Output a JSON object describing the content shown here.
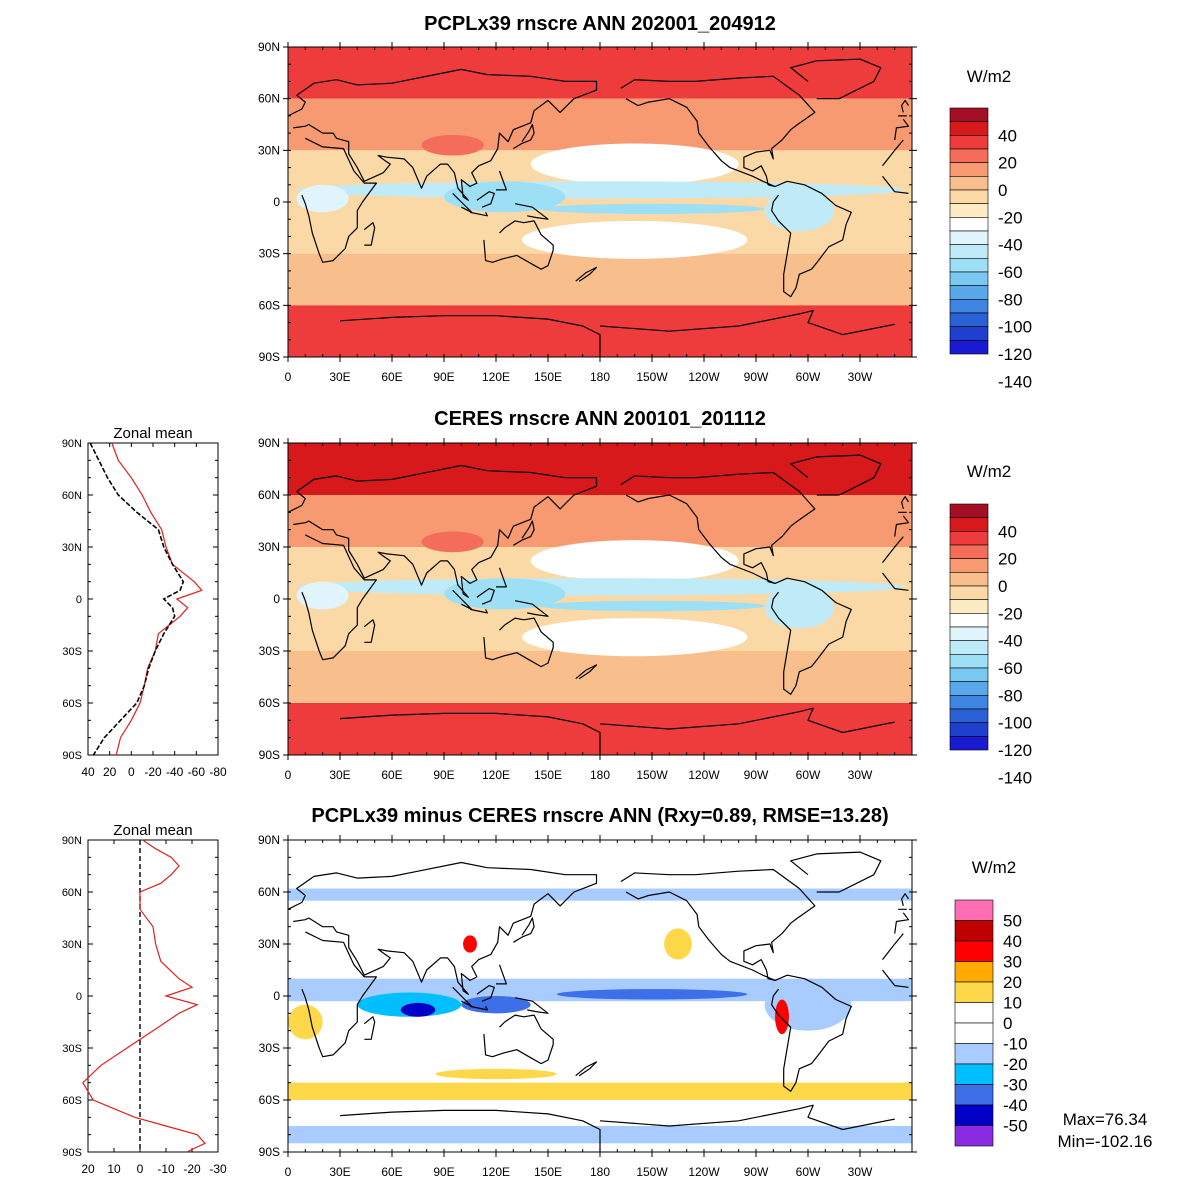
{
  "chart_data": [
    {
      "type": "heatmap",
      "panel": "model",
      "title": "PCPLx39 rnscre ANN 202001_204912",
      "units": "W/m2",
      "lat_ticks": [
        "90N",
        "60N",
        "30N",
        "0",
        "30S",
        "60S",
        "90S"
      ],
      "lon_ticks": [
        "0",
        "30E",
        "60E",
        "90E",
        "120E",
        "150E",
        "180",
        "150W",
        "120W",
        "90W",
        "60W",
        "30W"
      ],
      "colorbar_labels": [
        "40",
        "20",
        "0",
        "-20",
        "-40",
        "-60",
        "-80",
        "-100",
        "-120",
        "-140"
      ],
      "colorbar_colors": [
        "#a50f25",
        "#d7191c",
        "#ee3b3b",
        "#f46d5a",
        "#f79a72",
        "#f8bf8c",
        "#fbd9a6",
        "#fdebc3",
        "#ffffff",
        "#dff4fb",
        "#bfebf9",
        "#9ddff5",
        "#79c8f2",
        "#58a8ea",
        "#3d85e0",
        "#2a62d6",
        "#1f3fcf",
        "#1a1ad0"
      ],
      "zonal_mean": null
    },
    {
      "type": "heatmap",
      "panel": "obs",
      "title": "CERES rnscre ANN 200101_201112",
      "units": "W/m2",
      "lat_ticks": [
        "90N",
        "60N",
        "30N",
        "0",
        "30S",
        "60S",
        "90S"
      ],
      "lon_ticks": [
        "0",
        "30E",
        "60E",
        "90E",
        "120E",
        "150E",
        "180",
        "150W",
        "120W",
        "90W",
        "60W",
        "30W"
      ],
      "colorbar_labels": [
        "40",
        "20",
        "0",
        "-20",
        "-40",
        "-60",
        "-80",
        "-100",
        "-120",
        "-140"
      ],
      "colorbar_colors": [
        "#a50f25",
        "#d7191c",
        "#ee3b3b",
        "#f46d5a",
        "#f79a72",
        "#f8bf8c",
        "#fbd9a6",
        "#fdebc3",
        "#ffffff",
        "#dff4fb",
        "#bfebf9",
        "#9ddff5",
        "#79c8f2",
        "#58a8ea",
        "#3d85e0",
        "#2a62d6",
        "#1f3fcf",
        "#1a1ad0"
      ],
      "zonal_mean": {
        "title": "Zonal mean",
        "x_ticks": [
          "40",
          "20",
          "0",
          "-20",
          "-40",
          "-60",
          "-80"
        ],
        "xlim": [
          40,
          -80
        ],
        "lat": [
          90,
          80,
          70,
          60,
          50,
          40,
          30,
          20,
          10,
          5,
          0,
          -5,
          -10,
          -20,
          -30,
          -40,
          -50,
          -60,
          -70,
          -80,
          -90
        ],
        "series": [
          {
            "name": "PCPLx39",
            "color": "#e0201b",
            "values": [
              18,
              12,
              0,
              -10,
              -18,
              -28,
              -32,
              -38,
              -58,
              -65,
              -42,
              -52,
              -45,
              -25,
              -22,
              -15,
              -12,
              -8,
              0,
              10,
              14
            ]
          },
          {
            "name": "CERES",
            "color": "#000000",
            "dash": true,
            "values": [
              38,
              30,
              22,
              12,
              -5,
              -25,
              -30,
              -38,
              -48,
              -45,
              -30,
              -38,
              -40,
              -30,
              -22,
              -16,
              -12,
              -5,
              10,
              25,
              35
            ]
          }
        ]
      }
    },
    {
      "type": "heatmap",
      "panel": "difference",
      "title": "PCPLx39 minus CERES rnscre ANN (Rxy=0.89, RMSE=13.28)",
      "units": "W/m2",
      "lat_ticks": [
        "90N",
        "60N",
        "30N",
        "0",
        "30S",
        "60S",
        "90S"
      ],
      "lon_ticks": [
        "0",
        "30E",
        "60E",
        "90E",
        "120E",
        "150E",
        "180",
        "150W",
        "120W",
        "90W",
        "60W",
        "30W"
      ],
      "colorbar_labels": [
        "50",
        "40",
        "30",
        "20",
        "10",
        "0",
        "-10",
        "-20",
        "-30",
        "-40",
        "-50"
      ],
      "colorbar_colors": [
        "#ff6eb4",
        "#c00000",
        "#ff0000",
        "#ffaa00",
        "#ffd84a",
        "#ffffff",
        "#ffffff",
        "#a8ccff",
        "#00bfff",
        "#3d6fe8",
        "#0000c8",
        "#8a2be2"
      ],
      "stats": {
        "max": "Max=76.34",
        "min": "Min=-102.16"
      },
      "zonal_mean": {
        "title": "Zonal mean",
        "x_ticks": [
          "20",
          "10",
          "0",
          "-10",
          "-20",
          "-30"
        ],
        "xlim": [
          20,
          -30
        ],
        "lat": [
          90,
          85,
          80,
          75,
          70,
          65,
          60,
          50,
          40,
          30,
          20,
          10,
          5,
          0,
          -5,
          -10,
          -20,
          -30,
          -40,
          -50,
          -60,
          -65,
          -70,
          -75,
          -80,
          -85,
          -90
        ],
        "series": [
          {
            "name": "difference",
            "color": "#e0201b",
            "values": [
              -1,
              -6,
              -12,
              -15,
              -12,
              -8,
              0,
              0,
              -5,
              -6,
              -8,
              -15,
              -20,
              -10,
              -22,
              -15,
              -5,
              5,
              15,
              22,
              18,
              10,
              2,
              -10,
              -22,
              -25,
              -18
            ]
          }
        ]
      }
    }
  ]
}
